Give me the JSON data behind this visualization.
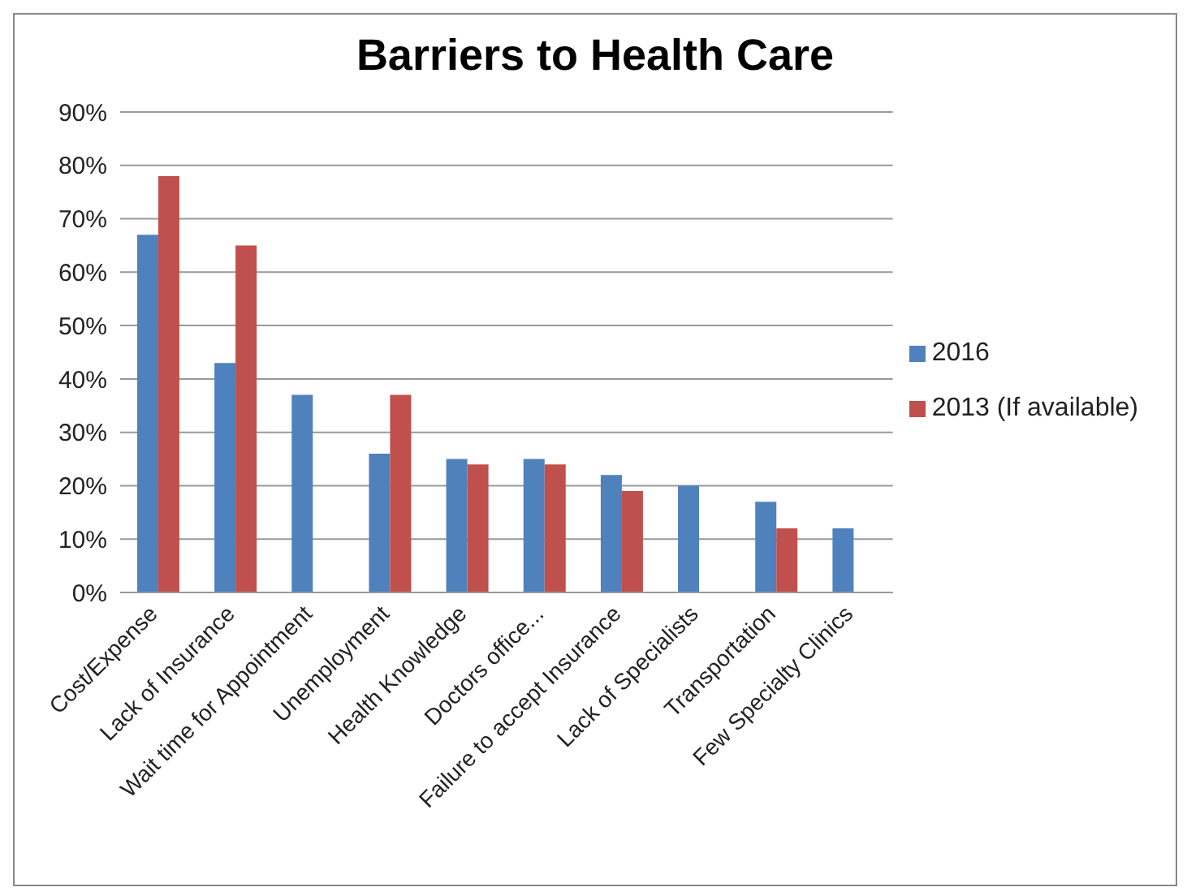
{
  "chart_data": {
    "type": "bar",
    "title": "Barriers to Health Care",
    "categories": [
      "Cost/Expense",
      "Lack of Insurance",
      "Wait time for Appointment",
      "Unemployment",
      "Health Knowledge",
      "Doctors office...",
      "Failure to accept Insurance",
      "Lack of Specialists",
      "Transportation",
      "Few Specialty Clinics"
    ],
    "series": [
      {
        "name": "2016",
        "color": "#4f81bd",
        "values": [
          67,
          43,
          37,
          26,
          25,
          25,
          22,
          20,
          17,
          12
        ]
      },
      {
        "name": "2013 (If available)",
        "color": "#c0504d",
        "values": [
          78,
          65,
          null,
          37,
          24,
          24,
          19,
          null,
          12,
          null
        ]
      }
    ],
    "ylim": [
      0,
      90
    ],
    "yticks": [
      {
        "value": 0,
        "label": "0%"
      },
      {
        "value": 10,
        "label": "10%"
      },
      {
        "value": 20,
        "label": "20%"
      },
      {
        "value": 30,
        "label": "30%"
      },
      {
        "value": 40,
        "label": "40%"
      },
      {
        "value": 50,
        "label": "50%"
      },
      {
        "value": 60,
        "label": "60%"
      },
      {
        "value": 70,
        "label": "70%"
      },
      {
        "value": 80,
        "label": "80%"
      },
      {
        "value": 90,
        "label": "90%"
      }
    ],
    "grid": "y",
    "legend": "right"
  }
}
